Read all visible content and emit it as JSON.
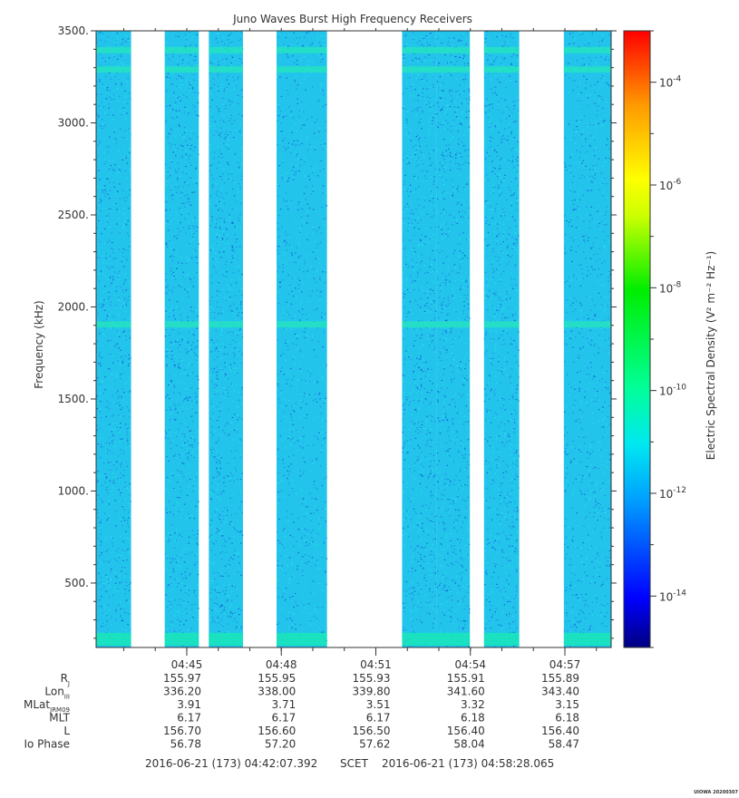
{
  "chart_data": {
    "type": "heatmap",
    "title": "Juno Waves Burst High Frequency Receivers",
    "ylabel": "Frequency (kHz)",
    "ylim": [
      150,
      3500
    ],
    "y_ticks": [
      500,
      1000,
      1500,
      2000,
      2500,
      3000,
      3500
    ],
    "y_tick_labels": [
      "500.",
      "1000.",
      "1500.",
      "2000.",
      "2500.",
      "3000.",
      "3500."
    ],
    "x_time_range": [
      "04:42:07.392",
      "04:58:28.065"
    ],
    "x_ticks": [
      "04:45",
      "04:48",
      "04:51",
      "04:54",
      "04:57"
    ],
    "data_segments": [
      [
        "04:42:07",
        "04:43:14"
      ],
      [
        "04:44:18",
        "04:45:23"
      ],
      [
        "04:45:42",
        "04:46:47"
      ],
      [
        "04:47:51",
        "04:49:27"
      ],
      [
        "04:51:50",
        "04:52:55"
      ],
      [
        "04:52:55",
        "04:53:59"
      ],
      [
        "04:54:26",
        "04:55:33"
      ],
      [
        "04:56:58",
        "04:58:28"
      ]
    ],
    "background_level": "1e-12",
    "emission_bands_khz": [
      195,
      1905,
      3290,
      3395
    ],
    "colorbar": {
      "label": "Electric Spectral Density (V² m⁻² Hz⁻¹)",
      "log_min": -15,
      "log_max": -3,
      "tick_labels": [
        "10^-14",
        "10^-12",
        "10^-10",
        "10^-8",
        "10^-6",
        "10^-4"
      ],
      "tick_exponents": [
        -14,
        -12,
        -10,
        -8,
        -6,
        -4
      ],
      "colormap": [
        "#00007f",
        "#0000ff",
        "#00bfff",
        "#00ffcc",
        "#00ff00",
        "#ffff00",
        "#ff8000",
        "#ff0000"
      ]
    },
    "ephemeris": {
      "rows": [
        {
          "label": "R",
          "sub": "J",
          "values": [
            "155.97",
            "155.95",
            "155.93",
            "155.91",
            "155.89"
          ]
        },
        {
          "label": "Lon",
          "sub": "III",
          "values": [
            "336.20",
            "338.00",
            "339.80",
            "341.60",
            "343.40"
          ]
        },
        {
          "label": "MLat",
          "sub": "JRM09",
          "values": [
            "3.91",
            "3.71",
            "3.51",
            "3.32",
            "3.15"
          ]
        },
        {
          "label": "MLT",
          "sub": "",
          "values": [
            "6.17",
            "6.17",
            "6.17",
            "6.18",
            "6.18"
          ]
        },
        {
          "label": "L",
          "sub": "",
          "values": [
            "156.70",
            "156.60",
            "156.50",
            "156.40",
            "156.40"
          ]
        },
        {
          "label": "Io Phase",
          "sub": "",
          "values": [
            "56.78",
            "57.20",
            "57.62",
            "58.04",
            "58.47"
          ]
        }
      ]
    },
    "footer": {
      "start": "2016-06-21 (173) 04:42:07.392",
      "scet": "SCET",
      "end": "2016-06-21 (173) 04:58:28.065"
    },
    "credit": "UIOWA 20200307"
  }
}
